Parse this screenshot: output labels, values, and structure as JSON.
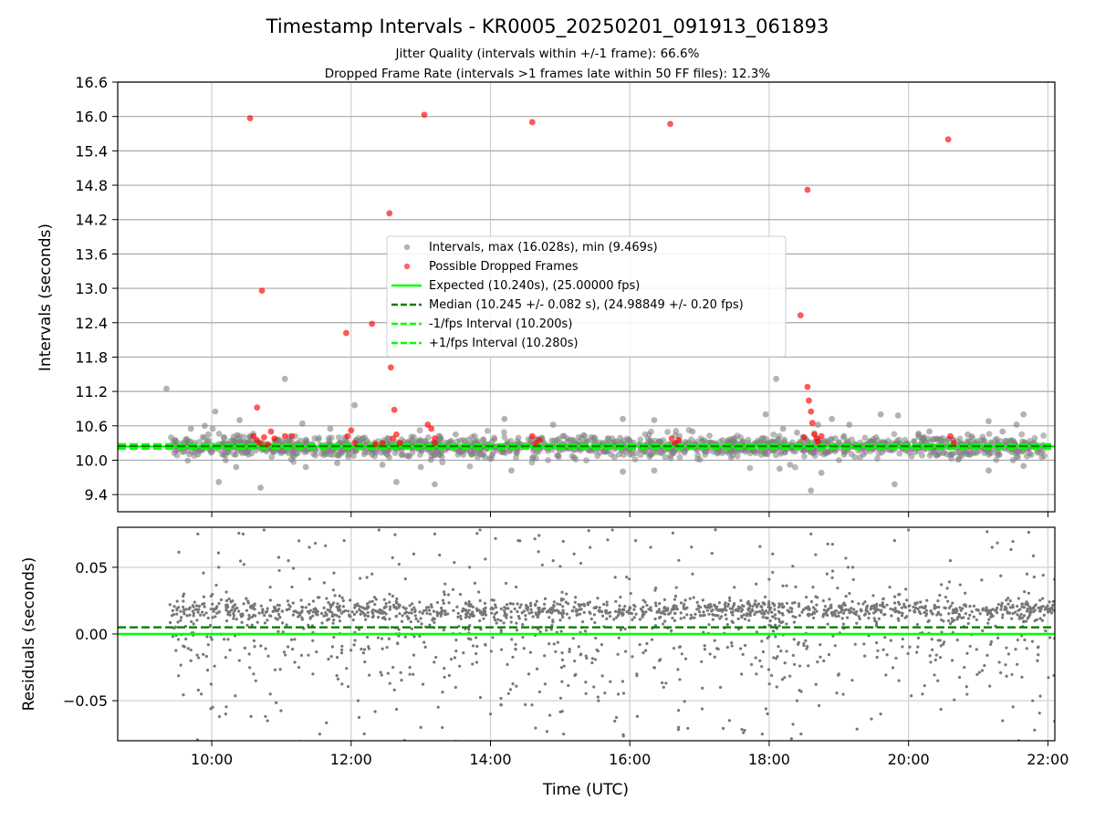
{
  "title": "Timestamp Intervals - KR0005_20250201_091913_061893",
  "subtitle_lines": [
    "Jitter Quality (intervals within +/-1 frame): 66.6%",
    "Dropped Frame Rate (intervals >1 frames late within 50 FF files): 12.3%"
  ],
  "chart_data": [
    {
      "type": "scatter",
      "panel": "intervals",
      "xlabel": "",
      "ylabel": "Intervals (seconds)",
      "xlim": [
        8.65,
        22.1
      ],
      "ylim": [
        9.1,
        16.6
      ],
      "yticks": [
        "9.4",
        "10.0",
        "10.6",
        "11.2",
        "11.8",
        "12.4",
        "13.0",
        "13.6",
        "14.2",
        "14.8",
        "15.4",
        "16.0",
        "16.6"
      ],
      "grid": true,
      "legend_position": "center",
      "legend": [
        {
          "label": "Intervals, max (16.028s), min (9.469s)",
          "kind": "marker",
          "color": "#808080"
        },
        {
          "label": "Possible Dropped Frames",
          "kind": "marker",
          "color": "#ff0000"
        },
        {
          "label": "Expected (10.240s), (25.00000 fps)",
          "kind": "solid",
          "color": "#00ff00"
        },
        {
          "label": "Median (10.245 +/- 0.082 s), (24.98849 +/- 0.20 fps)",
          "kind": "dashed",
          "color": "#008000"
        },
        {
          "label": "-1/fps Interval (10.200s)",
          "kind": "dashed",
          "color": "#00ff00"
        },
        {
          "label": "+1/fps Interval (10.280s)",
          "kind": "dashed",
          "color": "#00ff00"
        }
      ],
      "reference_lines": [
        {
          "name": "expected",
          "y": 10.24,
          "color": "#00ff00",
          "style": "solid"
        },
        {
          "name": "median",
          "y": 10.245,
          "color": "#008000",
          "style": "dashed"
        },
        {
          "name": "minus-one-frame",
          "y": 10.2,
          "color": "#00ff00",
          "style": "dashed"
        },
        {
          "name": "plus-one-frame",
          "y": 10.28,
          "color": "#00ff00",
          "style": "dashed"
        }
      ],
      "series": [
        {
          "name": "Intervals, max (16.028s), min (9.469s)",
          "color": "#808080",
          "points": [
            [
              9.35,
              11.25
            ],
            [
              9.7,
              10.55
            ],
            [
              9.75,
              10.3
            ],
            [
              9.8,
              10.1
            ],
            [
              9.9,
              10.6
            ],
            [
              9.95,
              10.45
            ],
            [
              10.05,
              10.85
            ],
            [
              10.1,
              9.62
            ],
            [
              10.2,
              10.0
            ],
            [
              10.35,
              9.88
            ],
            [
              10.4,
              10.7
            ],
            [
              10.7,
              9.52
            ],
            [
              10.9,
              10.15
            ],
            [
              11.05,
              11.42
            ],
            [
              11.3,
              10.64
            ],
            [
              11.35,
              9.88
            ],
            [
              11.7,
              10.55
            ],
            [
              11.8,
              9.95
            ],
            [
              12.05,
              10.96
            ],
            [
              12.3,
              10.1
            ],
            [
              12.45,
              9.92
            ],
            [
              12.65,
              9.62
            ],
            [
              12.9,
              10.4
            ],
            [
              13.0,
              9.88
            ],
            [
              13.2,
              9.58
            ],
            [
              13.5,
              10.45
            ],
            [
              13.9,
              10.1
            ],
            [
              14.2,
              10.72
            ],
            [
              14.3,
              9.82
            ],
            [
              14.9,
              10.62
            ],
            [
              15.2,
              10.05
            ],
            [
              15.5,
              10.38
            ],
            [
              15.9,
              10.72
            ],
            [
              15.9,
              9.8
            ],
            [
              16.35,
              10.7
            ],
            [
              16.35,
              9.82
            ],
            [
              16.9,
              10.5
            ],
            [
              17.2,
              10.15
            ],
            [
              17.5,
              10.35
            ],
            [
              17.95,
              10.8
            ],
            [
              18.1,
              11.42
            ],
            [
              18.15,
              9.85
            ],
            [
              18.2,
              10.55
            ],
            [
              18.3,
              9.92
            ],
            [
              18.4,
              10.48
            ],
            [
              18.6,
              9.47
            ],
            [
              18.7,
              10.62
            ],
            [
              18.75,
              9.78
            ],
            [
              18.9,
              10.72
            ],
            [
              19.0,
              10.3
            ],
            [
              19.15,
              10.62
            ],
            [
              19.35,
              10.1
            ],
            [
              19.6,
              10.8
            ],
            [
              19.85,
              10.78
            ],
            [
              19.8,
              9.58
            ],
            [
              20.3,
              10.5
            ],
            [
              20.6,
              10.1
            ],
            [
              20.85,
              10.45
            ],
            [
              21.15,
              10.68
            ],
            [
              21.15,
              9.82
            ],
            [
              21.35,
              10.5
            ],
            [
              21.5,
              10.0
            ],
            [
              21.55,
              10.62
            ],
            [
              21.65,
              10.8
            ],
            [
              21.65,
              9.9
            ]
          ]
        },
        {
          "name": "Possible Dropped Frames",
          "color": "#ff0000",
          "points": [
            [
              10.55,
              15.97
            ],
            [
              10.72,
              12.96
            ],
            [
              10.65,
              10.92
            ],
            [
              10.6,
              10.42
            ],
            [
              10.65,
              10.35
            ],
            [
              10.7,
              10.3
            ],
            [
              10.75,
              10.4
            ],
            [
              10.8,
              10.28
            ],
            [
              10.85,
              10.5
            ],
            [
              10.9,
              10.38
            ],
            [
              11.05,
              10.42
            ],
            [
              11.15,
              10.42
            ],
            [
              11.93,
              12.22
            ],
            [
              11.95,
              10.42
            ],
            [
              12.0,
              10.52
            ],
            [
              12.05,
              10.3
            ],
            [
              12.3,
              12.38
            ],
            [
              12.35,
              10.28
            ],
            [
              12.45,
              10.3
            ],
            [
              12.55,
              14.31
            ],
            [
              12.57,
              11.62
            ],
            [
              12.62,
              10.88
            ],
            [
              12.6,
              10.38
            ],
            [
              12.65,
              10.45
            ],
            [
              12.7,
              10.3
            ],
            [
              13.05,
              16.03
            ],
            [
              13.1,
              10.62
            ],
            [
              13.15,
              10.55
            ],
            [
              13.2,
              10.38
            ],
            [
              13.2,
              10.3
            ],
            [
              14.6,
              15.9
            ],
            [
              14.6,
              10.42
            ],
            [
              14.65,
              10.3
            ],
            [
              14.7,
              10.35
            ],
            [
              16.58,
              15.87
            ],
            [
              16.6,
              10.38
            ],
            [
              16.65,
              10.3
            ],
            [
              16.7,
              10.35
            ],
            [
              18.45,
              12.53
            ],
            [
              18.55,
              14.72
            ],
            [
              18.5,
              10.4
            ],
            [
              18.55,
              11.28
            ],
            [
              18.57,
              11.04
            ],
            [
              18.6,
              10.85
            ],
            [
              18.62,
              10.65
            ],
            [
              18.65,
              10.45
            ],
            [
              18.68,
              10.38
            ],
            [
              18.7,
              10.32
            ],
            [
              18.75,
              10.42
            ],
            [
              20.57,
              15.6
            ],
            [
              20.6,
              10.42
            ],
            [
              20.65,
              10.3
            ]
          ]
        }
      ]
    },
    {
      "type": "scatter",
      "panel": "residuals",
      "xlabel": "Time (UTC)",
      "ylabel": "Residuals (seconds)",
      "xlim": [
        8.65,
        22.1
      ],
      "ylim": [
        -0.08,
        0.08
      ],
      "xticks": [
        "10:00",
        "12:00",
        "14:00",
        "16:00",
        "18:00",
        "20:00",
        "22:00"
      ],
      "xtick_values": [
        10,
        12,
        14,
        16,
        18,
        20,
        22
      ],
      "yticks": [
        "−0.05",
        "0.00",
        "0.05"
      ],
      "ytick_values": [
        -0.05,
        0.0,
        0.05
      ],
      "grid": true,
      "reference_lines": [
        {
          "name": "zero",
          "y": 0.0,
          "color": "#00ff00",
          "style": "solid"
        },
        {
          "name": "median-offset",
          "y": 0.005,
          "color": "#008000",
          "style": "dashed"
        }
      ],
      "series": [
        {
          "name": "",
          "color": "#808080",
          "points": [
            [
              9.4,
              0.022
            ],
            [
              9.5,
              0.018
            ],
            [
              9.6,
              0.03
            ],
            [
              9.7,
              -0.02
            ],
            [
              9.8,
              0.075
            ],
            [
              9.85,
              -0.045
            ],
            [
              9.95,
              0.012
            ],
            [
              10.1,
              0.05
            ],
            [
              10.2,
              -0.06
            ],
            [
              10.3,
              0.02
            ],
            [
              10.45,
              0.075
            ],
            [
              10.6,
              -0.03
            ],
            [
              10.75,
              0.078
            ],
            [
              10.8,
              -0.065
            ],
            [
              10.9,
              0.018
            ],
            [
              11.1,
              0.055
            ],
            [
              11.25,
              -0.025
            ],
            [
              11.4,
              0.065
            ],
            [
              11.55,
              -0.075
            ],
            [
              11.7,
              0.022
            ],
            [
              11.9,
              0.07
            ],
            [
              12.1,
              -0.05
            ],
            [
              12.3,
              0.045
            ],
            [
              12.4,
              0.078
            ],
            [
              12.6,
              -0.025
            ],
            [
              12.75,
              0.02
            ],
            [
              12.9,
              0.06
            ],
            [
              13.0,
              -0.07
            ],
            [
              13.2,
              0.075
            ],
            [
              13.35,
              0.015
            ],
            [
              13.5,
              -0.04
            ],
            [
              13.7,
              0.05
            ],
            [
              13.85,
              0.078
            ],
            [
              14.0,
              -0.06
            ],
            [
              14.2,
              0.02
            ],
            [
              14.4,
              0.07
            ],
            [
              14.55,
              -0.03
            ],
            [
              14.7,
              0.018
            ],
            [
              14.9,
              0.055
            ],
            [
              15.05,
              -0.075
            ],
            [
              15.2,
              0.06
            ],
            [
              15.4,
              0.022
            ],
            [
              15.55,
              -0.05
            ],
            [
              15.75,
              0.078
            ],
            [
              15.9,
              0.018
            ],
            [
              16.1,
              -0.03
            ],
            [
              16.3,
              0.065
            ],
            [
              16.5,
              0.02
            ],
            [
              16.7,
              -0.07
            ],
            [
              16.9,
              0.045
            ],
            [
              17.1,
              0.02
            ],
            [
              17.3,
              -0.04
            ],
            [
              17.5,
              0.035
            ],
            [
              17.7,
              0.018
            ],
            [
              17.9,
              -0.075
            ],
            [
              18.05,
              0.06
            ],
            [
              18.2,
              0.02
            ],
            [
              18.4,
              -0.05
            ],
            [
              18.6,
              0.075
            ],
            [
              18.8,
              0.015
            ],
            [
              19.0,
              -0.03
            ],
            [
              19.2,
              0.05
            ],
            [
              19.4,
              0.02
            ],
            [
              19.6,
              -0.06
            ],
            [
              19.8,
              0.07
            ],
            [
              20.0,
              0.078
            ],
            [
              20.2,
              -0.045
            ],
            [
              20.4,
              0.02
            ],
            [
              20.6,
              0.055
            ],
            [
              20.8,
              -0.025
            ],
            [
              21.0,
              0.018
            ],
            [
              21.2,
              0.065
            ],
            [
              21.35,
              -0.065
            ],
            [
              21.5,
              0.02
            ],
            [
              21.7,
              0.045
            ],
            [
              21.85,
              -0.02
            ],
            [
              22.0,
              0.018
            ]
          ]
        }
      ]
    }
  ]
}
